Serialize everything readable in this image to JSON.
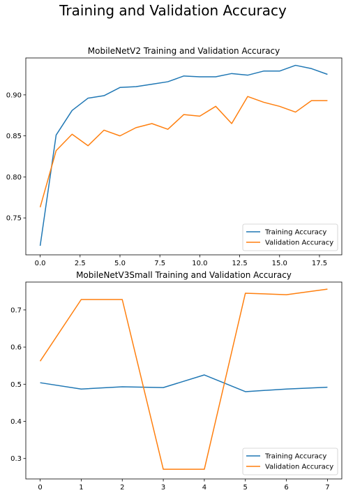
{
  "figure": {
    "suptitle": "Training and Validation Accuracy"
  },
  "chart_data": [
    {
      "type": "line",
      "title": "MobileNetV2 Training and Validation Accuracy",
      "xlabel": "",
      "ylabel": "",
      "xlim": [
        -0.9,
        18.9
      ],
      "ylim": [
        0.705,
        0.945
      ],
      "xticks": [
        0.0,
        2.5,
        5.0,
        7.5,
        10.0,
        12.5,
        15.0,
        17.5
      ],
      "xtick_labels": [
        "0.0",
        "2.5",
        "5.0",
        "7.5",
        "10.0",
        "12.5",
        "15.0",
        "17.5"
      ],
      "yticks": [
        0.75,
        0.8,
        0.85,
        0.9
      ],
      "ytick_labels": [
        "0.75",
        "0.80",
        "0.85",
        "0.90"
      ],
      "grid": false,
      "legend_position": "lower-right",
      "series": [
        {
          "name": "Training Accuracy",
          "color": "#1f77b4",
          "x": [
            0,
            1,
            2,
            3,
            4,
            5,
            6,
            7,
            8,
            9,
            10,
            11,
            12,
            13,
            14,
            15,
            16,
            17,
            18
          ],
          "values": [
            0.716,
            0.851,
            0.881,
            0.896,
            0.899,
            0.909,
            0.91,
            0.913,
            0.916,
            0.923,
            0.922,
            0.922,
            0.926,
            0.924,
            0.929,
            0.929,
            0.936,
            0.932,
            0.925
          ]
        },
        {
          "name": "Validation Accuracy",
          "color": "#ff7f0e",
          "x": [
            0,
            1,
            2,
            3,
            4,
            5,
            6,
            7,
            8,
            9,
            10,
            11,
            12,
            13,
            14,
            15,
            16,
            17,
            18
          ],
          "values": [
            0.763,
            0.832,
            0.852,
            0.838,
            0.857,
            0.85,
            0.86,
            0.865,
            0.858,
            0.876,
            0.874,
            0.886,
            0.865,
            0.898,
            0.891,
            0.886,
            0.879,
            0.893,
            0.893
          ]
        }
      ]
    },
    {
      "type": "line",
      "title": "MobileNetV3Small Training and Validation Accuracy",
      "xlabel": "",
      "ylabel": "",
      "xlim": [
        -0.35,
        7.35
      ],
      "ylim": [
        0.245,
        0.775
      ],
      "xticks": [
        0,
        1,
        2,
        3,
        4,
        5,
        6,
        7
      ],
      "xtick_labels": [
        "0",
        "1",
        "2",
        "3",
        "4",
        "5",
        "6",
        "7"
      ],
      "yticks": [
        0.3,
        0.4,
        0.5,
        0.6,
        0.7
      ],
      "ytick_labels": [
        "0.3",
        "0.4",
        "0.5",
        "0.6",
        "0.7"
      ],
      "grid": false,
      "legend_position": "lower-right",
      "series": [
        {
          "name": "Training Accuracy",
          "color": "#1f77b4",
          "x": [
            0,
            1,
            2,
            3,
            4,
            5,
            6,
            7
          ],
          "values": [
            0.504,
            0.487,
            0.493,
            0.491,
            0.525,
            0.48,
            0.487,
            0.492
          ]
        },
        {
          "name": "Validation Accuracy",
          "color": "#ff7f0e",
          "x": [
            0,
            1,
            2,
            3,
            4,
            5,
            6,
            7
          ],
          "values": [
            0.562,
            0.728,
            0.728,
            0.271,
            0.271,
            0.745,
            0.741,
            0.756
          ]
        }
      ]
    }
  ]
}
